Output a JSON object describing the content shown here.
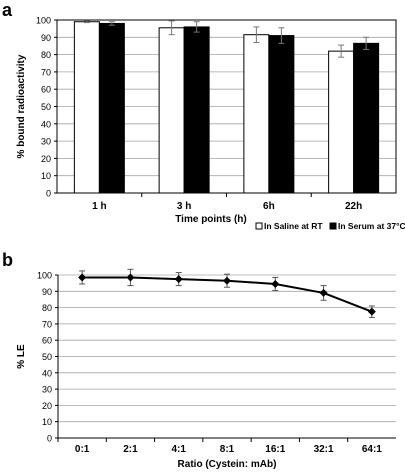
{
  "panels": {
    "a": {
      "label": "a"
    },
    "b": {
      "label": "b"
    }
  },
  "chart_data": [
    {
      "type": "bar",
      "title": "",
      "xlabel": "Time points (h)",
      "ylabel": "% bound radioactivity",
      "ylim": [
        0,
        100
      ],
      "ytick_step": 10,
      "grid": true,
      "legend_position": "bottom-right",
      "categories": [
        "1 h",
        "3 h",
        "6h",
        "22h"
      ],
      "series": [
        {
          "name": "In Saline at RT",
          "values": [
            99,
            95.5,
            91.5,
            82
          ],
          "errors": [
            0.5,
            4,
            4.5,
            3.5
          ],
          "color": "#ffffff"
        },
        {
          "name": "In Serum at 37°C",
          "values": [
            98,
            96,
            91,
            86.5
          ],
          "errors": [
            1,
            3,
            4.5,
            3.5
          ],
          "color": "#000000"
        }
      ]
    },
    {
      "type": "line",
      "title": "",
      "xlabel": "Ratio (Cystein:  mAb)",
      "ylabel": "% LE",
      "ylim": [
        0,
        100
      ],
      "ytick_step": 10,
      "grid": true,
      "categories": [
        "0:1",
        "2:1",
        "4:1",
        "8:1",
        "16:1",
        "32:1",
        "64:1"
      ],
      "series": [
        {
          "values": [
            98.5,
            98.5,
            97.5,
            96.5,
            94.5,
            89,
            77.5
          ],
          "errors": [
            4,
            5,
            4,
            4,
            4,
            4.5,
            3.5
          ],
          "color": "#000000"
        }
      ]
    }
  ]
}
